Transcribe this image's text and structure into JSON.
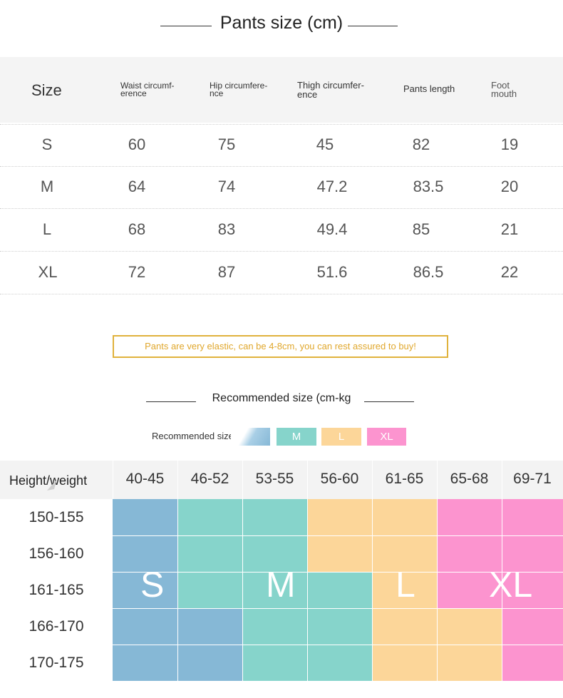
{
  "size_table": {
    "title": "Pants size (cm)",
    "headers": [
      "Size",
      "Waist circumf-\nerence",
      "Hip circumfere-\nnce",
      "Thigh circumfer-\nence",
      "Pants length",
      "Foot\nmouth"
    ],
    "rows": [
      [
        "S",
        "60",
        "75",
        "45",
        "82",
        "19"
      ],
      [
        "M",
        "64",
        "74",
        "47.2",
        "83.5",
        "20"
      ],
      [
        "L",
        "68",
        "83",
        "49.4",
        "85",
        "21"
      ],
      [
        "XL",
        "72",
        "87",
        "51.6",
        "86.5",
        "22"
      ]
    ]
  },
  "note": "Pants are very elastic, can be 4-8cm, you can rest assured to buy!",
  "recommend": {
    "title": "Recommended size (cm-kg",
    "legend_label": "Recommended size: S",
    "legend": [
      {
        "label": "M",
        "color": "#86d4cb"
      },
      {
        "label": "L",
        "color": "#fcd699"
      },
      {
        "label": "XL",
        "color": "#fc94cf"
      }
    ],
    "s_color": "#86b8d6",
    "corner_label": "Height/weight",
    "weights": [
      "40-45",
      "46-52",
      "53-55",
      "56-60",
      "61-65",
      "65-68",
      "69-71"
    ],
    "heights": [
      "150-155",
      "156-160",
      "161-165",
      "166-170",
      "170-175"
    ],
    "grid": [
      [
        "S",
        "M",
        "M",
        "L",
        "L",
        "XL",
        "XL"
      ],
      [
        "S",
        "M",
        "M",
        "L",
        "L",
        "XL",
        "XL"
      ],
      [
        "S",
        "M",
        "M",
        "M",
        "L",
        "XL",
        "XL"
      ],
      [
        "S",
        "S",
        "M",
        "M",
        "L",
        "L",
        "XL"
      ],
      [
        "S",
        "S",
        "M",
        "M",
        "L",
        "L",
        "XL"
      ]
    ],
    "big_labels": [
      "S",
      "M",
      "L",
      "XL"
    ]
  }
}
